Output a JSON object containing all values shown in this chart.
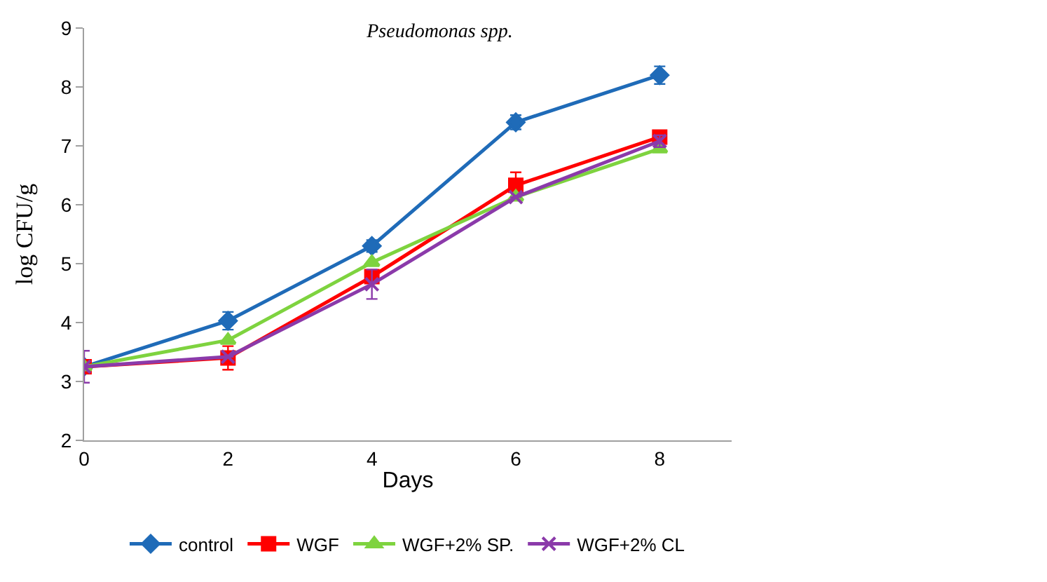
{
  "chart_data": {
    "type": "line",
    "title": "Pseudomonas spp.",
    "xlabel": "Days",
    "ylabel": "log CFU/g",
    "x": [
      0,
      2,
      4,
      6,
      8
    ],
    "xlim": [
      0,
      9
    ],
    "xticks": [
      0,
      2,
      4,
      6,
      8
    ],
    "ylim": [
      2,
      9
    ],
    "yticks": [
      2,
      3,
      4,
      5,
      6,
      7,
      8,
      9
    ],
    "legend": "bottom",
    "series": [
      {
        "name": "control",
        "color": "#1f6bb8",
        "marker": "diamond",
        "values": [
          3.25,
          4.03,
          5.3,
          7.4,
          8.2
        ],
        "errors": [
          null,
          0.15,
          0.1,
          0.12,
          0.15
        ]
      },
      {
        "name": "WGF",
        "color": "#ff0000",
        "marker": "square",
        "values": [
          3.25,
          3.4,
          4.78,
          6.33,
          7.15
        ],
        "errors": [
          null,
          0.2,
          null,
          0.22,
          null
        ]
      },
      {
        "name": "WGF+2% SP.",
        "color": "#7ed33f",
        "marker": "triangle",
        "values": [
          3.25,
          3.7,
          5.02,
          6.13,
          6.95
        ]
      },
      {
        "name": "WGF+2% CL",
        "color": "#8b3aaa",
        "marker": "cross",
        "values": [
          3.25,
          3.42,
          4.65,
          6.13,
          7.08
        ],
        "errors": [
          0.27,
          null,
          0.25,
          null,
          0.1
        ]
      }
    ]
  }
}
